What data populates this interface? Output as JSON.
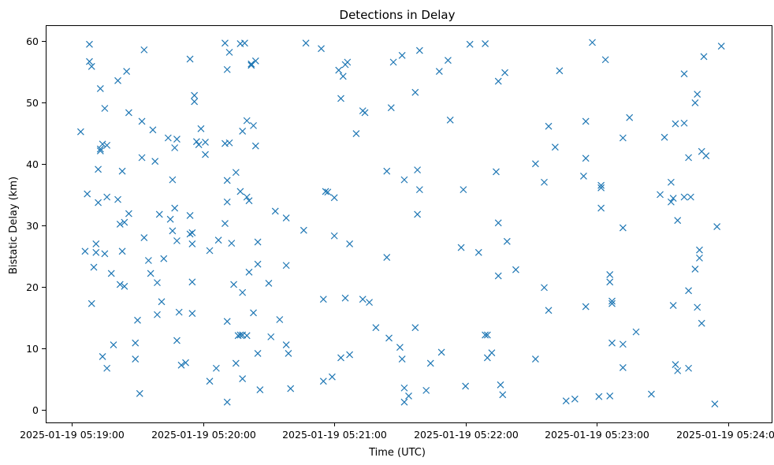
{
  "chart_data": {
    "type": "scatter",
    "title": "Detections in Delay",
    "xlabel": "Time (UTC)",
    "ylabel": "Bistatic Delay (km)",
    "x_unit": "seconds after 2025-01-19 05:19:00",
    "xlim": [
      -12,
      320
    ],
    "ylim": [
      -2,
      62.5
    ],
    "xticks": [
      0,
      60,
      120,
      180,
      240,
      300
    ],
    "xtick_labels": [
      "2025-01-19 05:19:00",
      "2025-01-19 05:20:00",
      "2025-01-19 05:21:00",
      "2025-01-19 05:22:00",
      "2025-01-19 05:23:00",
      "2025-01-19 05:24:00"
    ],
    "yticks": [
      0,
      10,
      20,
      30,
      40,
      50,
      60
    ],
    "ytick_labels": [
      "0",
      "10",
      "20",
      "30",
      "40",
      "50",
      "60"
    ],
    "marker": "x",
    "color": "#1f77b4",
    "series": [
      {
        "name": "detections",
        "points": [
          [
            4,
            45.2
          ],
          [
            6,
            25.8
          ],
          [
            7,
            35.1
          ],
          [
            8,
            56.6
          ],
          [
            8,
            59.4
          ],
          [
            9,
            17.3
          ],
          [
            9,
            55.8
          ],
          [
            10,
            23.2
          ],
          [
            11,
            27.0
          ],
          [
            11,
            25.6
          ],
          [
            12,
            33.7
          ],
          [
            12,
            39.1
          ],
          [
            13,
            52.2
          ],
          [
            13,
            42.1
          ],
          [
            13,
            42.4
          ],
          [
            14,
            43.2
          ],
          [
            14,
            8.7
          ],
          [
            15,
            49.0
          ],
          [
            15,
            25.4
          ],
          [
            16,
            6.8
          ],
          [
            16,
            43.0
          ],
          [
            16,
            34.6
          ],
          [
            18,
            22.2
          ],
          [
            19,
            10.6
          ],
          [
            21,
            53.5
          ],
          [
            21,
            34.2
          ],
          [
            22,
            30.2
          ],
          [
            22,
            20.4
          ],
          [
            23,
            38.8
          ],
          [
            23,
            25.8
          ],
          [
            24,
            20.1
          ],
          [
            24,
            30.5
          ],
          [
            25,
            55.0
          ],
          [
            26,
            48.3
          ],
          [
            26,
            31.9
          ],
          [
            29,
            10.9
          ],
          [
            29,
            8.3
          ],
          [
            30,
            14.6
          ],
          [
            31,
            2.7
          ],
          [
            32,
            46.9
          ],
          [
            32,
            41.0
          ],
          [
            33,
            28.0
          ],
          [
            33,
            58.5
          ],
          [
            35,
            24.3
          ],
          [
            36,
            22.2
          ],
          [
            37,
            45.5
          ],
          [
            38,
            40.4
          ],
          [
            39,
            20.7
          ],
          [
            39,
            15.5
          ],
          [
            40,
            31.8
          ],
          [
            41,
            17.6
          ],
          [
            42,
            24.6
          ],
          [
            44,
            44.2
          ],
          [
            45,
            31.0
          ],
          [
            46,
            37.4
          ],
          [
            46,
            29.1
          ],
          [
            47,
            42.6
          ],
          [
            47,
            32.8
          ],
          [
            48,
            44.0
          ],
          [
            48,
            11.3
          ],
          [
            48,
            27.5
          ],
          [
            49,
            15.9
          ],
          [
            50,
            7.3
          ],
          [
            52,
            7.7
          ],
          [
            54,
            31.6
          ],
          [
            54,
            28.6
          ],
          [
            54,
            57.0
          ],
          [
            55,
            27.0
          ],
          [
            55,
            20.8
          ],
          [
            55,
            15.7
          ],
          [
            55,
            28.8
          ],
          [
            56,
            51.1
          ],
          [
            56,
            50.1
          ],
          [
            57,
            43.6
          ],
          [
            58,
            43.1
          ],
          [
            59,
            45.7
          ],
          [
            61,
            43.5
          ],
          [
            61,
            41.5
          ],
          [
            63,
            4.7
          ],
          [
            63,
            25.9
          ],
          [
            66,
            6.8
          ],
          [
            67,
            27.6
          ],
          [
            70,
            59.6
          ],
          [
            70,
            43.3
          ],
          [
            70,
            30.3
          ],
          [
            71,
            37.3
          ],
          [
            71,
            33.8
          ],
          [
            71,
            55.3
          ],
          [
            71,
            14.4
          ],
          [
            71,
            1.3
          ],
          [
            72,
            43.4
          ],
          [
            72,
            58.1
          ],
          [
            73,
            27.1
          ],
          [
            74,
            20.4
          ],
          [
            75,
            38.6
          ],
          [
            75,
            7.6
          ],
          [
            76,
            12.1
          ],
          [
            77,
            12.2
          ],
          [
            77,
            59.5
          ],
          [
            77,
            35.5
          ],
          [
            78,
            19.1
          ],
          [
            78,
            12.2
          ],
          [
            78,
            45.3
          ],
          [
            78,
            5.1
          ],
          [
            79,
            59.6
          ],
          [
            80,
            47.0
          ],
          [
            80,
            34.6
          ],
          [
            80,
            12.1
          ],
          [
            81,
            22.4
          ],
          [
            81,
            34.0
          ],
          [
            82,
            56.0
          ],
          [
            82,
            56.2
          ],
          [
            83,
            46.2
          ],
          [
            83,
            15.8
          ],
          [
            84,
            42.9
          ],
          [
            84,
            56.7
          ],
          [
            85,
            23.7
          ],
          [
            85,
            27.3
          ],
          [
            85,
            9.2
          ],
          [
            86,
            3.3
          ],
          [
            90,
            20.6
          ],
          [
            91,
            11.9
          ],
          [
            93,
            32.3
          ],
          [
            95,
            14.7
          ],
          [
            98,
            10.6
          ],
          [
            98,
            31.2
          ],
          [
            98,
            23.5
          ],
          [
            99,
            9.2
          ],
          [
            100,
            3.5
          ],
          [
            106,
            29.2
          ],
          [
            107,
            59.6
          ],
          [
            114,
            58.7
          ],
          [
            115,
            18.0
          ],
          [
            115,
            4.7
          ],
          [
            116,
            35.5
          ],
          [
            117,
            35.4
          ],
          [
            119,
            5.4
          ],
          [
            120,
            34.5
          ],
          [
            120,
            28.3
          ],
          [
            122,
            55.2
          ],
          [
            123,
            8.5
          ],
          [
            123,
            50.6
          ],
          [
            124,
            54.2
          ],
          [
            125,
            18.2
          ],
          [
            125,
            56.1
          ],
          [
            126,
            56.5
          ],
          [
            127,
            27.0
          ],
          [
            127,
            9.0
          ],
          [
            130,
            44.9
          ],
          [
            133,
            48.6
          ],
          [
            133,
            18.0
          ],
          [
            134,
            48.3
          ],
          [
            136,
            17.5
          ],
          [
            139,
            13.4
          ],
          [
            144,
            38.8
          ],
          [
            144,
            24.8
          ],
          [
            145,
            11.7
          ],
          [
            146,
            49.1
          ],
          [
            147,
            56.5
          ],
          [
            150,
            10.2
          ],
          [
            151,
            8.3
          ],
          [
            151,
            57.6
          ],
          [
            152,
            37.4
          ],
          [
            152,
            3.6
          ],
          [
            152,
            1.3
          ],
          [
            154,
            2.3
          ],
          [
            157,
            51.6
          ],
          [
            157,
            13.4
          ],
          [
            158,
            31.8
          ],
          [
            158,
            39.0
          ],
          [
            159,
            58.4
          ],
          [
            159,
            35.8
          ],
          [
            162,
            3.2
          ],
          [
            164,
            7.6
          ],
          [
            168,
            55.0
          ],
          [
            169,
            9.4
          ],
          [
            172,
            56.8
          ],
          [
            173,
            47.1
          ],
          [
            178,
            26.4
          ],
          [
            179,
            35.8
          ],
          [
            180,
            3.9
          ],
          [
            182,
            59.4
          ],
          [
            186,
            25.6
          ],
          [
            189,
            59.5
          ],
          [
            189,
            12.2
          ],
          [
            190,
            12.2
          ],
          [
            190,
            8.5
          ],
          [
            192,
            9.3
          ],
          [
            194,
            38.7
          ],
          [
            195,
            53.4
          ],
          [
            195,
            30.4
          ],
          [
            195,
            21.8
          ],
          [
            196,
            4.1
          ],
          [
            197,
            2.5
          ],
          [
            198,
            54.8
          ],
          [
            199,
            27.4
          ],
          [
            203,
            22.8
          ],
          [
            212,
            40.0
          ],
          [
            212,
            8.3
          ],
          [
            216,
            37.0
          ],
          [
            216,
            19.9
          ],
          [
            218,
            46.1
          ],
          [
            218,
            16.2
          ],
          [
            221,
            42.7
          ],
          [
            223,
            55.1
          ],
          [
            226,
            1.5
          ],
          [
            230,
            1.8
          ],
          [
            234,
            38.0
          ],
          [
            235,
            40.9
          ],
          [
            235,
            16.8
          ],
          [
            235,
            46.9
          ],
          [
            238,
            59.7
          ],
          [
            241,
            2.2
          ],
          [
            242,
            36.5
          ],
          [
            242,
            36.1
          ],
          [
            242,
            32.8
          ],
          [
            244,
            56.9
          ],
          [
            246,
            2.3
          ],
          [
            246,
            20.8
          ],
          [
            246,
            22.0
          ],
          [
            247,
            17.3
          ],
          [
            247,
            17.7
          ],
          [
            247,
            10.9
          ],
          [
            252,
            29.6
          ],
          [
            252,
            44.2
          ],
          [
            252,
            6.9
          ],
          [
            252,
            10.7
          ],
          [
            255,
            47.5
          ],
          [
            258,
            12.7
          ],
          [
            265,
            2.6
          ],
          [
            269,
            35.0
          ],
          [
            271,
            44.3
          ],
          [
            274,
            37.0
          ],
          [
            274,
            33.8
          ],
          [
            275,
            34.4
          ],
          [
            275,
            17.0
          ],
          [
            276,
            46.5
          ],
          [
            276,
            7.4
          ],
          [
            277,
            30.8
          ],
          [
            277,
            6.4
          ],
          [
            280,
            54.6
          ],
          [
            280,
            46.6
          ],
          [
            280,
            34.6
          ],
          [
            282,
            41.0
          ],
          [
            282,
            19.4
          ],
          [
            282,
            6.8
          ],
          [
            283,
            34.6
          ],
          [
            285,
            49.9
          ],
          [
            285,
            22.9
          ],
          [
            286,
            51.3
          ],
          [
            286,
            16.7
          ],
          [
            287,
            26.0
          ],
          [
            287,
            24.7
          ],
          [
            288,
            42.0
          ],
          [
            288,
            14.1
          ],
          [
            289,
            57.4
          ],
          [
            290,
            41.3
          ],
          [
            294,
            1.0
          ],
          [
            295,
            29.8
          ],
          [
            297,
            59.1
          ]
        ]
      }
    ]
  }
}
